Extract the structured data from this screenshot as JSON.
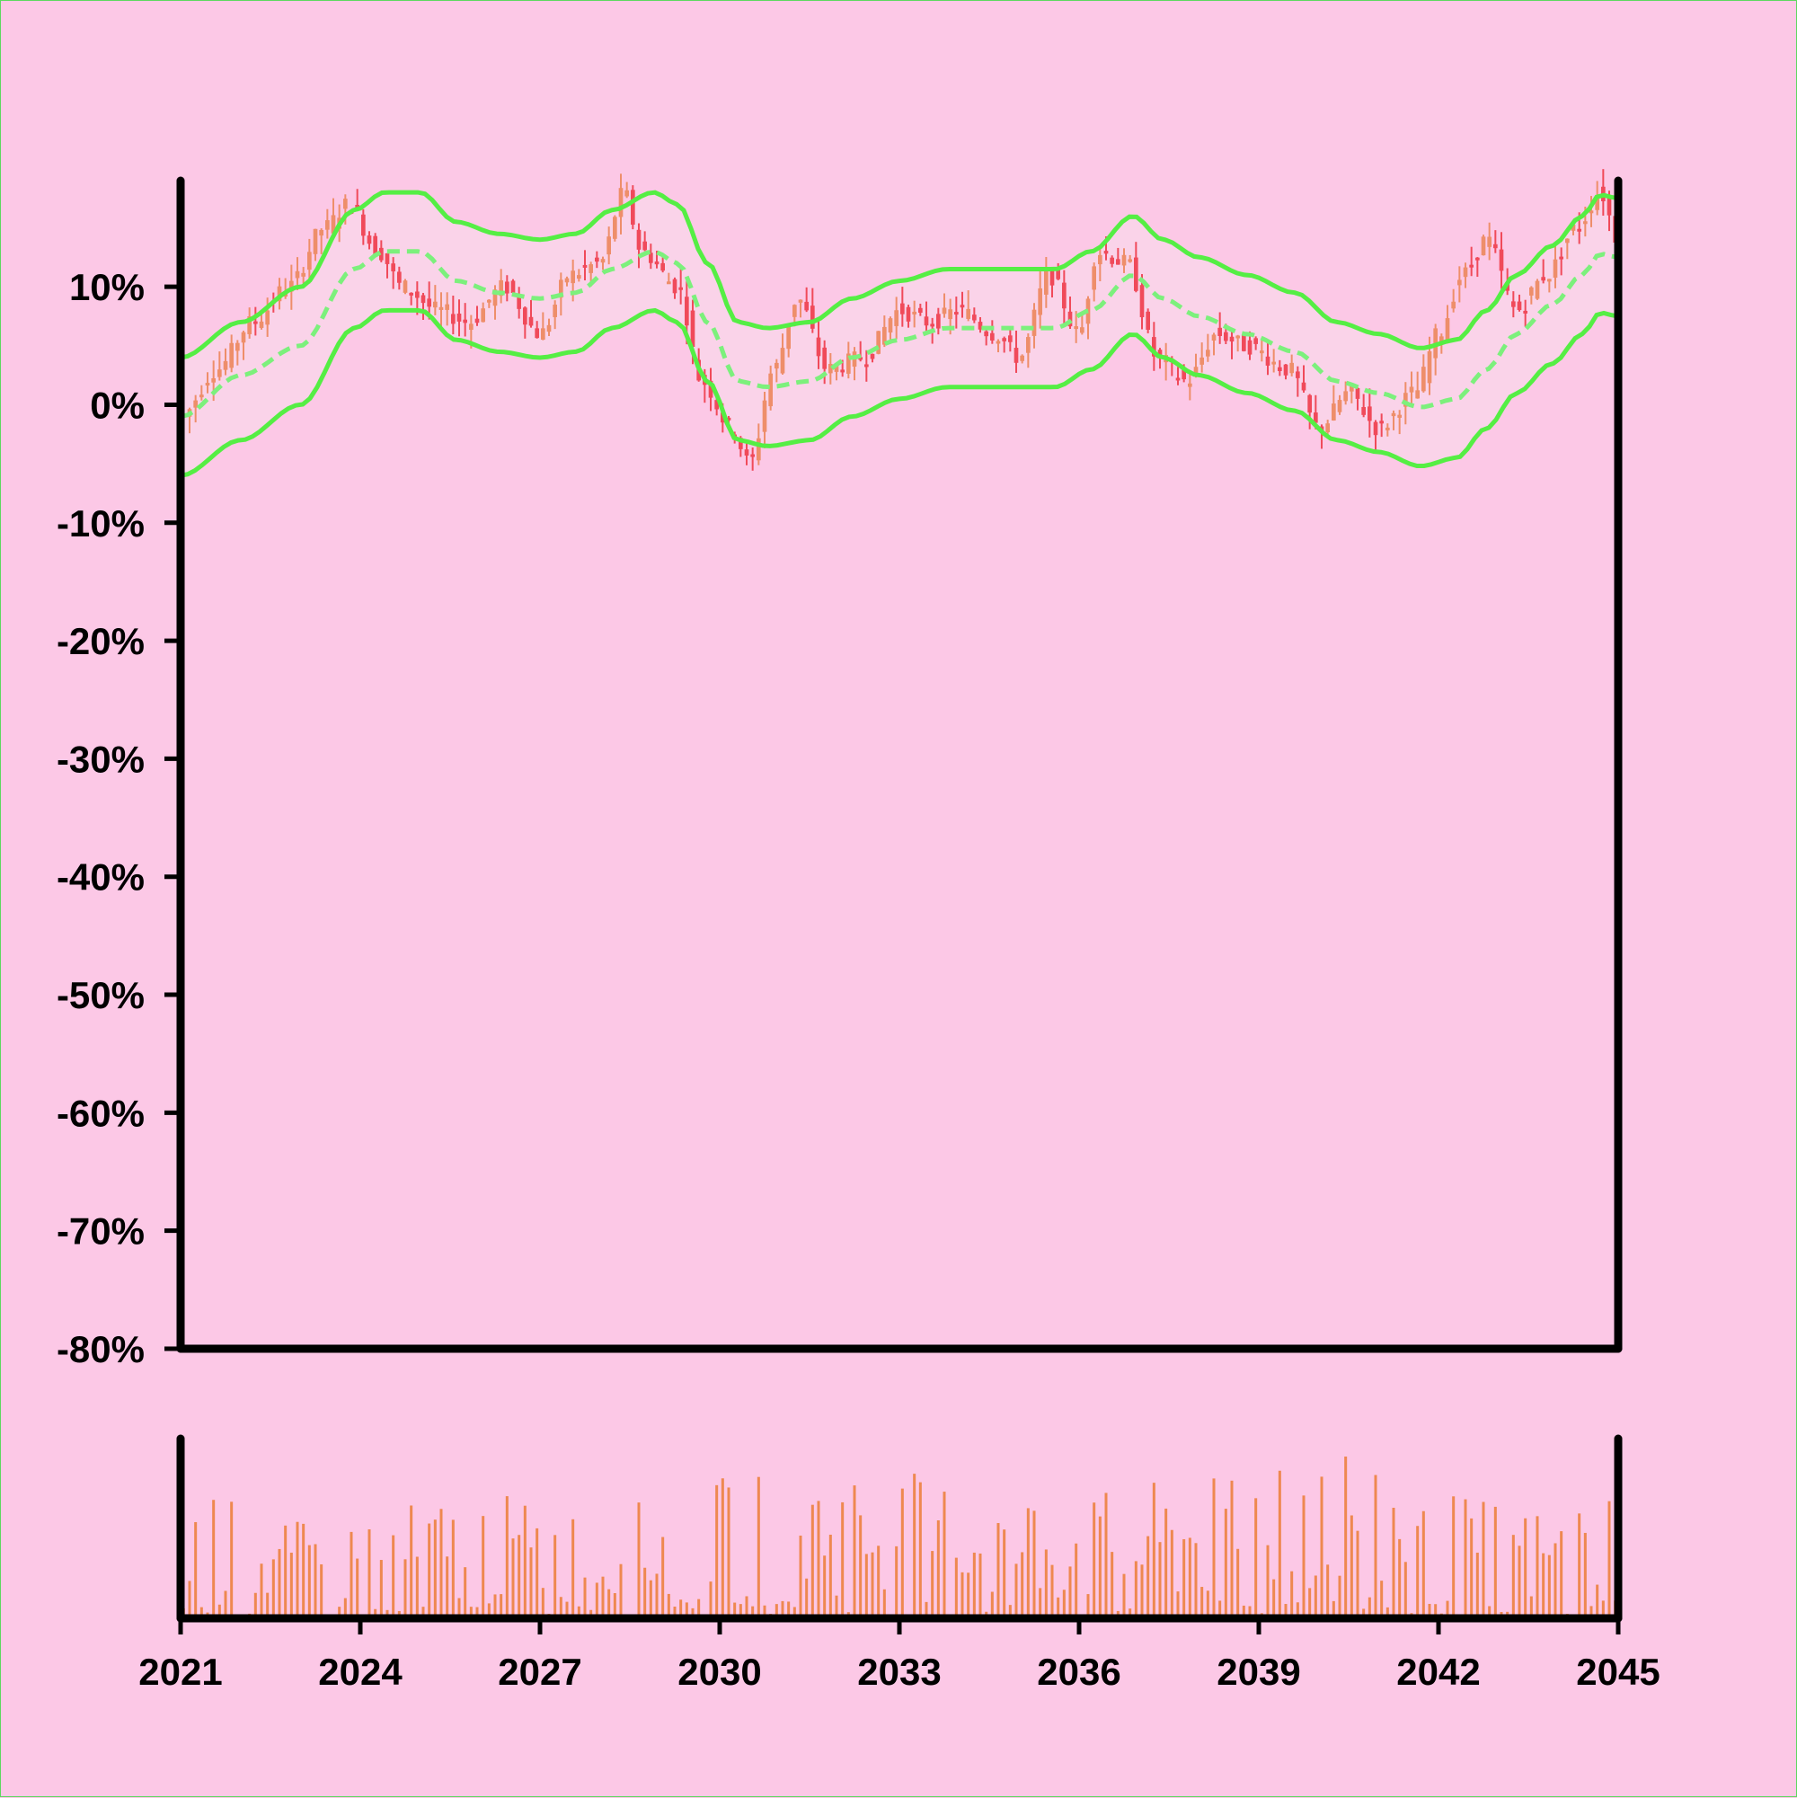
{
  "colors": {
    "background": "#fcc8e6",
    "frame_border": "#5fd85f",
    "axis": "#000000",
    "candle_up": "#ee8e6a",
    "candle_down": "#f04a5a",
    "band_line": "#55ee44",
    "band_mid_line": "#7cf07c",
    "band_fill": "#f9d6ea",
    "volume": "#ee8850"
  },
  "chart_data": {
    "type": "candlestick",
    "title": "",
    "xlabel": "",
    "ylabel": "",
    "xlim": [
      2021,
      2045
    ],
    "ylim": [
      -80,
      19
    ],
    "x_ticks": [
      2021,
      2024,
      2027,
      2030,
      2033,
      2036,
      2039,
      2042,
      2045
    ],
    "x_tick_labels": [
      "2021",
      "2024",
      "2027",
      "2030",
      "2033",
      "2036",
      "2039",
      "2042",
      "2045"
    ],
    "y_ticks": [
      10,
      0,
      -10,
      -20,
      -30,
      -40,
      -50,
      -60,
      -70,
      -80
    ],
    "y_tick_labels": [
      "10%",
      "0%",
      "-10%",
      "-20%",
      "-30%",
      "-40%",
      "-50%",
      "-60%",
      "-70%",
      "-80%"
    ],
    "grid": false,
    "legend": "none",
    "price_anchors": [
      [
        2021.0,
        -1
      ],
      [
        2021.6,
        3
      ],
      [
        2022.2,
        7
      ],
      [
        2022.8,
        10
      ],
      [
        2023.4,
        15
      ],
      [
        2023.8,
        17
      ],
      [
        2024.3,
        13
      ],
      [
        2024.7,
        10
      ],
      [
        2025.3,
        8
      ],
      [
        2025.8,
        7
      ],
      [
        2026.4,
        10
      ],
      [
        2027.0,
        6
      ],
      [
        2027.5,
        11
      ],
      [
        2028.0,
        12
      ],
      [
        2028.4,
        18
      ],
      [
        2028.7,
        13
      ],
      [
        2029.3,
        10
      ],
      [
        2029.7,
        2
      ],
      [
        2030.2,
        -2
      ],
      [
        2030.5,
        -5
      ],
      [
        2030.9,
        3
      ],
      [
        2031.3,
        9
      ],
      [
        2031.8,
        3
      ],
      [
        2032.4,
        4
      ],
      [
        2033.0,
        8
      ],
      [
        2033.5,
        7
      ],
      [
        2034.0,
        8
      ],
      [
        2034.6,
        6
      ],
      [
        2035.0,
        4
      ],
      [
        2035.5,
        11
      ],
      [
        2036.0,
        6
      ],
      [
        2036.3,
        13
      ],
      [
        2036.8,
        12
      ],
      [
        2037.3,
        4
      ],
      [
        2037.8,
        2
      ],
      [
        2038.3,
        6
      ],
      [
        2038.8,
        5
      ],
      [
        2039.5,
        3
      ],
      [
        2040.0,
        -2
      ],
      [
        2040.5,
        1
      ],
      [
        2041.0,
        -2
      ],
      [
        2041.6,
        1
      ],
      [
        2042.0,
        6
      ],
      [
        2042.4,
        11
      ],
      [
        2042.8,
        14
      ],
      [
        2043.3,
        8
      ],
      [
        2043.8,
        11
      ],
      [
        2044.3,
        15
      ],
      [
        2044.7,
        18
      ],
      [
        2045.0,
        14
      ]
    ],
    "upper_band": [
      [
        2021.0,
        4
      ],
      [
        2022.0,
        7
      ],
      [
        2023.0,
        10
      ],
      [
        2023.9,
        16.5
      ],
      [
        2024.4,
        18
      ],
      [
        2025.0,
        18
      ],
      [
        2025.6,
        15.5
      ],
      [
        2026.3,
        14.5
      ],
      [
        2027.0,
        14
      ],
      [
        2027.6,
        14.5
      ],
      [
        2028.2,
        16.5
      ],
      [
        2028.9,
        18
      ],
      [
        2029.3,
        17
      ],
      [
        2029.8,
        12
      ],
      [
        2030.3,
        7
      ],
      [
        2030.8,
        6.5
      ],
      [
        2031.5,
        7
      ],
      [
        2032.2,
        9
      ],
      [
        2033.0,
        10.5
      ],
      [
        2033.8,
        11.5
      ],
      [
        2034.5,
        11.5
      ],
      [
        2035.0,
        11.5
      ],
      [
        2035.6,
        11.5
      ],
      [
        2036.2,
        13
      ],
      [
        2036.9,
        16
      ],
      [
        2037.4,
        14
      ],
      [
        2038.0,
        12.5
      ],
      [
        2038.8,
        11
      ],
      [
        2039.6,
        9.5
      ],
      [
        2040.3,
        7
      ],
      [
        2041.0,
        6
      ],
      [
        2041.7,
        4.8
      ],
      [
        2042.3,
        5.5
      ],
      [
        2042.8,
        8
      ],
      [
        2043.3,
        11
      ],
      [
        2043.9,
        13.5
      ],
      [
        2044.4,
        16
      ],
      [
        2044.7,
        17.8
      ],
      [
        2045.0,
        17.5
      ]
    ],
    "middle_band": [
      [
        2021.0,
        -1
      ],
      [
        2022.0,
        2.5
      ],
      [
        2023.0,
        5
      ],
      [
        2023.9,
        11.5
      ],
      [
        2024.4,
        13
      ],
      [
        2025.0,
        13
      ],
      [
        2025.6,
        10.5
      ],
      [
        2026.3,
        9.5
      ],
      [
        2027.0,
        9
      ],
      [
        2027.6,
        9.5
      ],
      [
        2028.2,
        11.5
      ],
      [
        2028.9,
        13
      ],
      [
        2029.3,
        12
      ],
      [
        2029.8,
        7
      ],
      [
        2030.3,
        2
      ],
      [
        2030.8,
        1.5
      ],
      [
        2031.5,
        2
      ],
      [
        2032.2,
        4
      ],
      [
        2033.0,
        5.5
      ],
      [
        2033.8,
        6.5
      ],
      [
        2034.5,
        6.5
      ],
      [
        2035.0,
        6.5
      ],
      [
        2035.6,
        6.5
      ],
      [
        2036.2,
        8
      ],
      [
        2036.9,
        11
      ],
      [
        2037.4,
        9
      ],
      [
        2038.0,
        7.5
      ],
      [
        2038.8,
        6
      ],
      [
        2039.6,
        4.5
      ],
      [
        2040.3,
        2
      ],
      [
        2041.0,
        1
      ],
      [
        2041.7,
        -0.2
      ],
      [
        2042.3,
        0.5
      ],
      [
        2042.8,
        3
      ],
      [
        2043.3,
        6
      ],
      [
        2043.9,
        8.5
      ],
      [
        2044.4,
        11
      ],
      [
        2044.7,
        12.8
      ],
      [
        2045.0,
        12.5
      ]
    ],
    "lower_band": [
      [
        2021.0,
        -6
      ],
      [
        2022.0,
        -3
      ],
      [
        2023.0,
        0
      ],
      [
        2023.9,
        6.5
      ],
      [
        2024.4,
        8
      ],
      [
        2025.0,
        8
      ],
      [
        2025.6,
        5.5
      ],
      [
        2026.3,
        4.5
      ],
      [
        2027.0,
        4
      ],
      [
        2027.6,
        4.5
      ],
      [
        2028.2,
        6.5
      ],
      [
        2028.9,
        8
      ],
      [
        2029.3,
        7
      ],
      [
        2029.8,
        2
      ],
      [
        2030.3,
        -3
      ],
      [
        2030.8,
        -3.5
      ],
      [
        2031.5,
        -3
      ],
      [
        2032.2,
        -1
      ],
      [
        2033.0,
        0.5
      ],
      [
        2033.8,
        1.5
      ],
      [
        2034.5,
        1.5
      ],
      [
        2035.0,
        1.5
      ],
      [
        2035.6,
        1.5
      ],
      [
        2036.2,
        3
      ],
      [
        2036.9,
        6
      ],
      [
        2037.4,
        4
      ],
      [
        2038.0,
        2.5
      ],
      [
        2038.8,
        1
      ],
      [
        2039.6,
        -0.5
      ],
      [
        2040.3,
        -3
      ],
      [
        2041.0,
        -4
      ],
      [
        2041.7,
        -5.2
      ],
      [
        2042.3,
        -4.5
      ],
      [
        2042.8,
        -2
      ],
      [
        2043.3,
        1
      ],
      [
        2043.9,
        3.5
      ],
      [
        2044.4,
        6
      ],
      [
        2044.7,
        7.8
      ],
      [
        2045.0,
        7.5
      ]
    ],
    "candle_count": 240,
    "volume_profile": [
      [
        2021.0,
        0.5
      ],
      [
        2022.5,
        0.3
      ],
      [
        2024.0,
        0.35
      ],
      [
        2026.0,
        0.4
      ],
      [
        2028.0,
        0.35
      ],
      [
        2030.0,
        0.45
      ],
      [
        2032.0,
        0.5
      ],
      [
        2034.0,
        0.45
      ],
      [
        2036.0,
        0.4
      ],
      [
        2038.0,
        0.45
      ],
      [
        2040.0,
        0.7
      ],
      [
        2041.0,
        0.55
      ],
      [
        2042.0,
        0.4
      ],
      [
        2044.0,
        0.35
      ],
      [
        2045.0,
        0.45
      ]
    ]
  }
}
